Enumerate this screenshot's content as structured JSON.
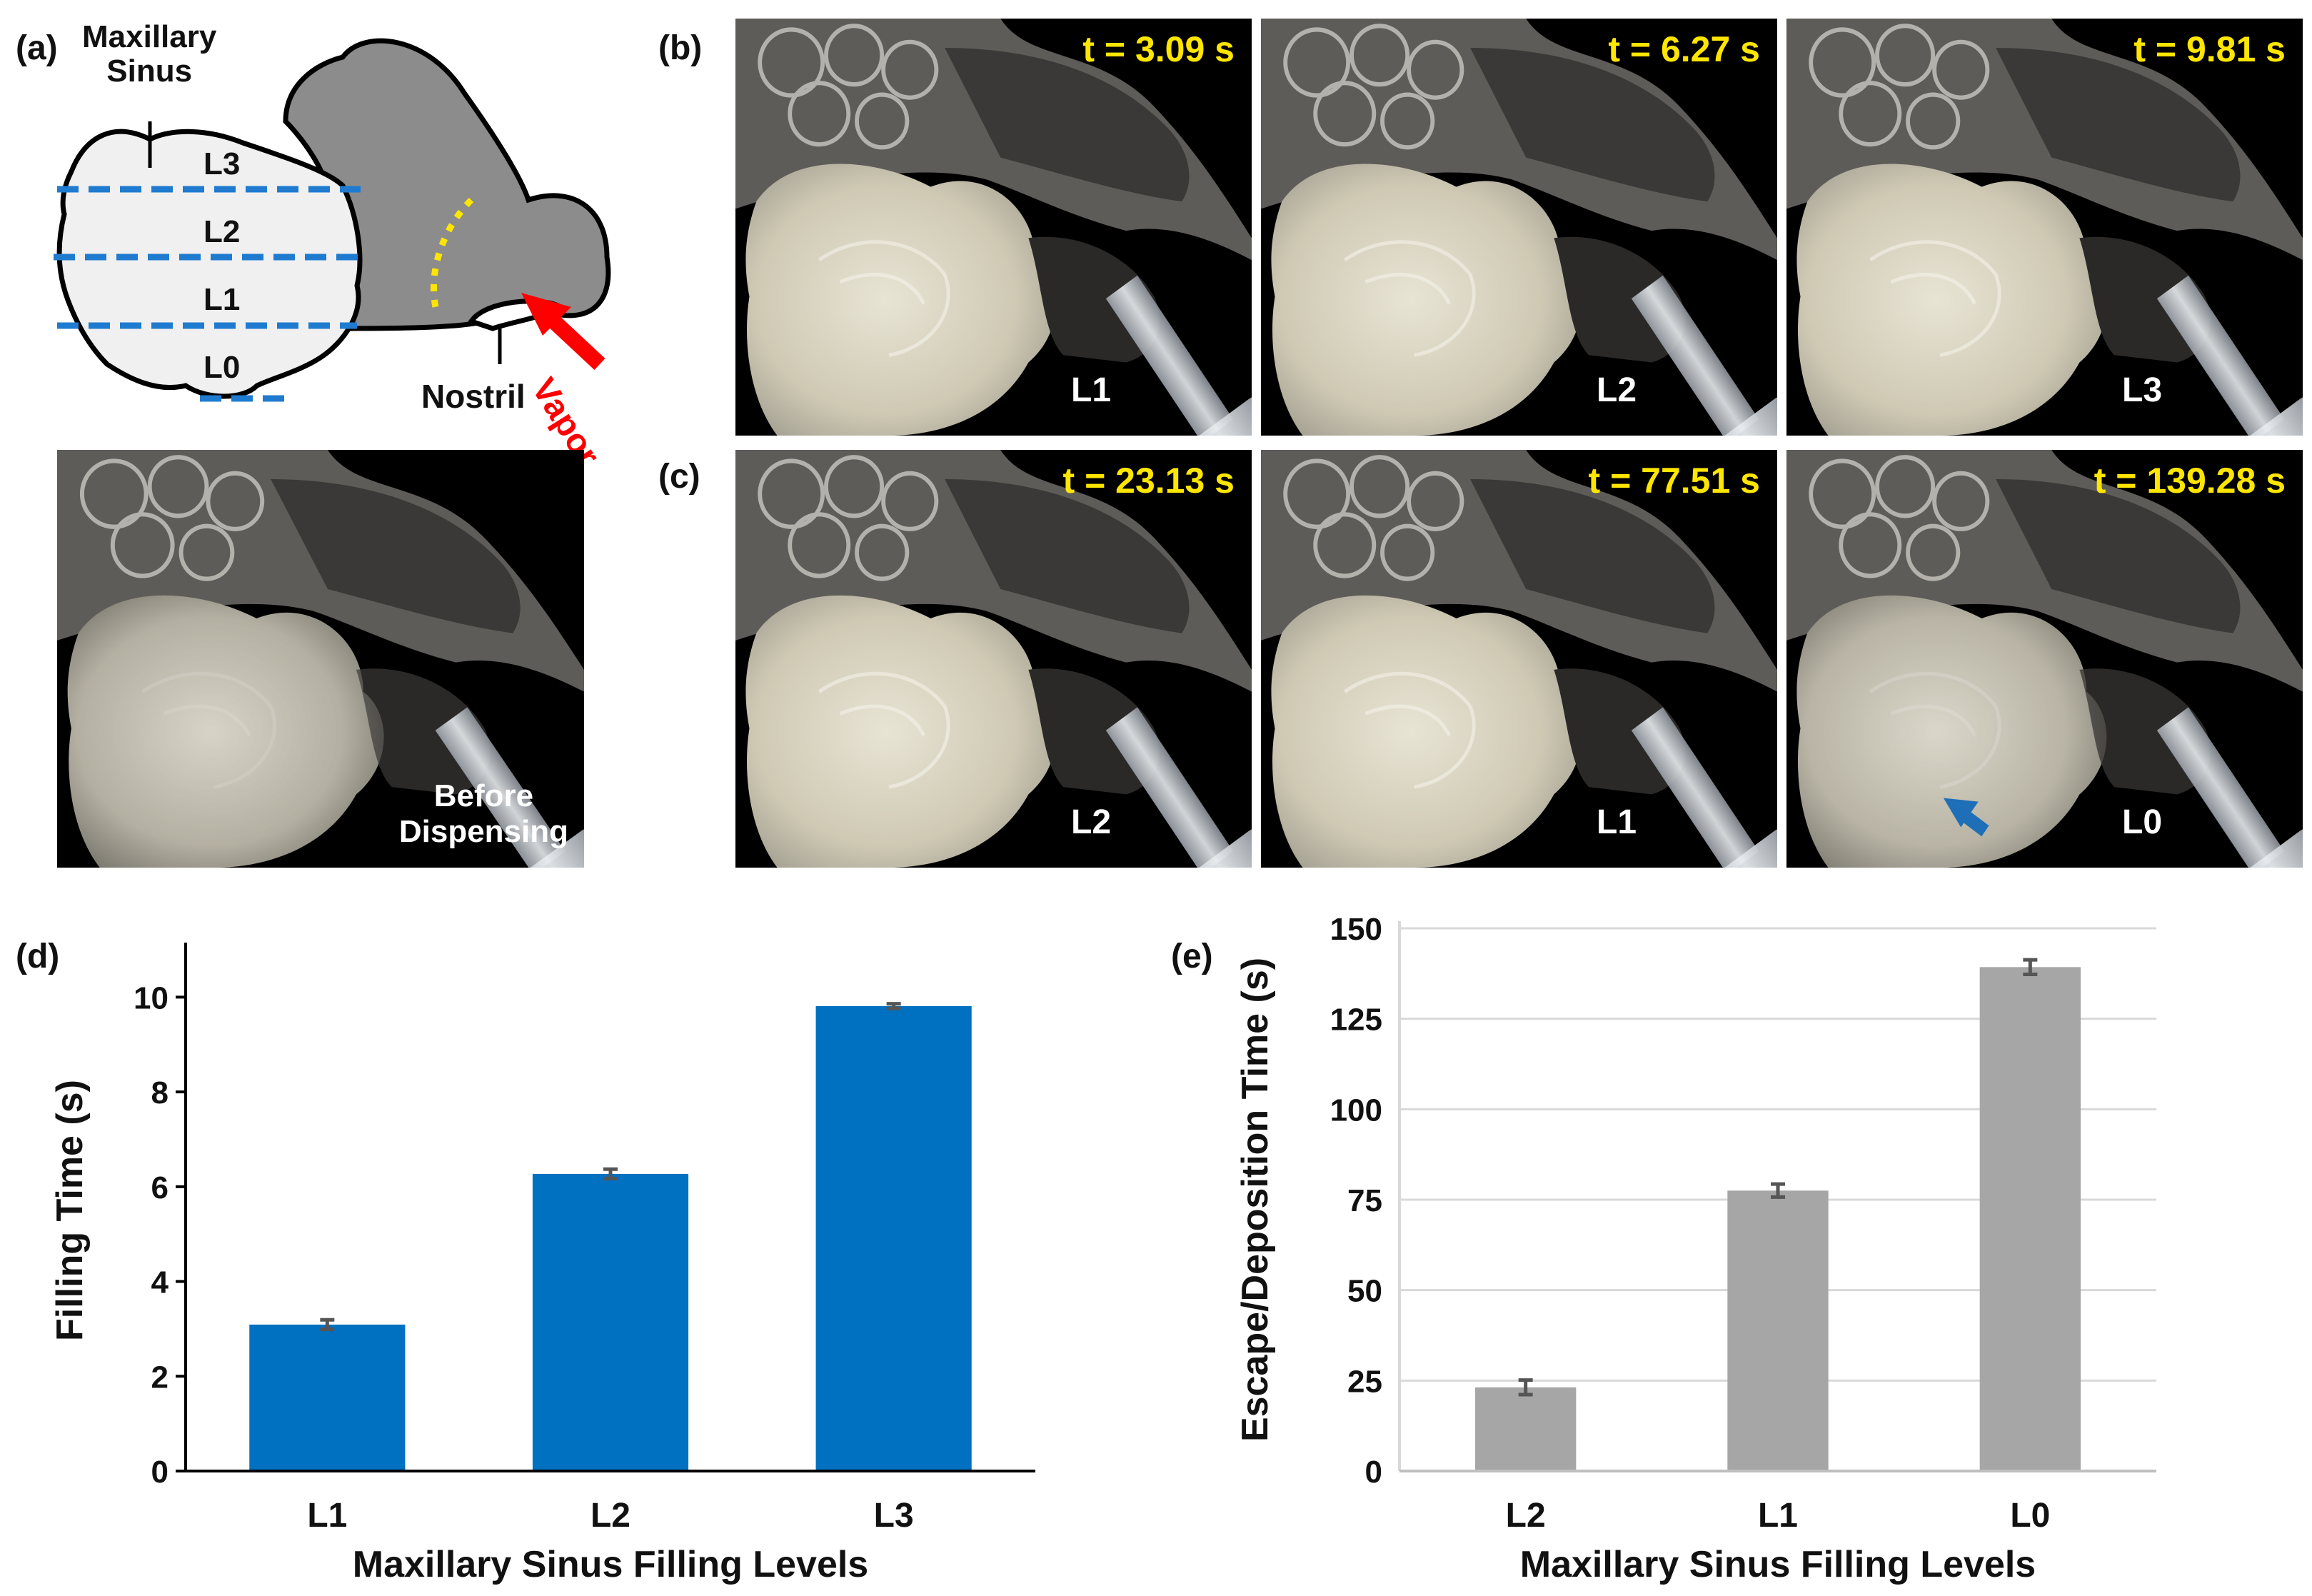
{
  "panels": {
    "a": {
      "label": "(a)",
      "sinus_label": "Maxillary\nSinus",
      "levels": [
        "L3",
        "L2",
        "L1",
        "L0"
      ],
      "nostril_label": "Nostril",
      "vapor_label": "Vapor",
      "colors": {
        "level_line": "#1f7bd0",
        "airway": "#8c8c8c",
        "sinus": "#f0f0f0",
        "vapor_arrow": "#ff0000",
        "boundary": "#ffe600"
      }
    },
    "b": {
      "label": "(b)"
    },
    "c": {
      "label": "(c)"
    },
    "d": {
      "label": "(d)"
    },
    "e": {
      "label": "(e)"
    }
  },
  "before_photo": {
    "caption": "Before\nDispensing"
  },
  "photos_b": [
    {
      "time": "t = 3.09 s",
      "level": "L1"
    },
    {
      "time": "t = 6.27 s",
      "level": "L2"
    },
    {
      "time": "t = 9.81 s",
      "level": "L3"
    }
  ],
  "photos_c": [
    {
      "time": "t = 23.13 s",
      "level": "L2"
    },
    {
      "time": "t = 77.51 s",
      "level": "L1"
    },
    {
      "time": "t = 139.28 s",
      "level": "L0"
    }
  ],
  "chart_data": [
    {
      "panel": "(d)",
      "type": "bar",
      "categories": [
        "L1",
        "L2",
        "L3"
      ],
      "values": [
        3.09,
        6.27,
        9.81
      ],
      "errors": [
        0.1,
        0.1,
        0.05
      ],
      "yticks": [
        "0",
        "2",
        "4",
        "6",
        "8",
        "10"
      ],
      "ylim": [
        0,
        11
      ],
      "xlabel": "Maxillary Sinus Filling Levels",
      "ylabel": "Filling Time (s)",
      "color": "#0070c0",
      "grid": false
    },
    {
      "panel": "(e)",
      "type": "bar",
      "categories": [
        "L2",
        "L1",
        "L0"
      ],
      "values": [
        23.13,
        77.51,
        139.28
      ],
      "errors": [
        2.0,
        1.8,
        2.0
      ],
      "yticks": [
        "0",
        "25",
        "50",
        "75",
        "100",
        "125",
        "150"
      ],
      "ylim": [
        0,
        150
      ],
      "xlabel": "Maxillary Sinus Filling Levels",
      "ylabel": "Escape/Deposition Time (s)",
      "color": "#a6a6a6",
      "grid": true
    }
  ]
}
